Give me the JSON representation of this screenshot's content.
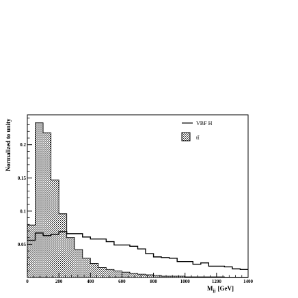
{
  "chart_data": {
    "type": "histogram",
    "xlabel": "M",
    "xlabel_sub": "jj",
    "xlabel_unit": "[GeV]",
    "ylabel": "Normalized to unity",
    "xlim": [
      0,
      1400
    ],
    "ylim": [
      0,
      0.245
    ],
    "xticks": [
      0,
      200,
      400,
      600,
      800,
      1000,
      1200,
      1400
    ],
    "yticks": [
      0.05,
      0.1,
      0.15,
      0.2
    ],
    "ytick_labels": [
      "0.05",
      "0.1",
      "0.15",
      "0.2"
    ],
    "bin_width": 50,
    "grid": false,
    "legend_position": "top-right",
    "series": [
      {
        "name": "VBF H",
        "style": "line",
        "color": "#000000",
        "values": [
          0.056,
          0.067,
          0.063,
          0.065,
          0.069,
          0.066,
          0.066,
          0.061,
          0.058,
          0.058,
          0.054,
          0.049,
          0.049,
          0.047,
          0.043,
          0.036,
          0.031,
          0.03,
          0.029,
          0.024,
          0.024,
          0.02,
          0.022,
          0.017,
          0.017,
          0.016,
          0.013,
          0.012
        ]
      },
      {
        "name": "tt̄",
        "style": "hatched",
        "color": "#000000",
        "values": [
          0.079,
          0.233,
          0.218,
          0.147,
          0.096,
          0.06,
          0.042,
          0.029,
          0.021,
          0.015,
          0.012,
          0.01,
          0.008,
          0.006,
          0.005,
          0.004,
          0.003,
          0.002,
          0.002,
          0.002,
          0.001,
          0.001,
          0.001,
          0.001,
          0.001,
          0.0005,
          0.0005,
          0.0005
        ]
      }
    ]
  }
}
